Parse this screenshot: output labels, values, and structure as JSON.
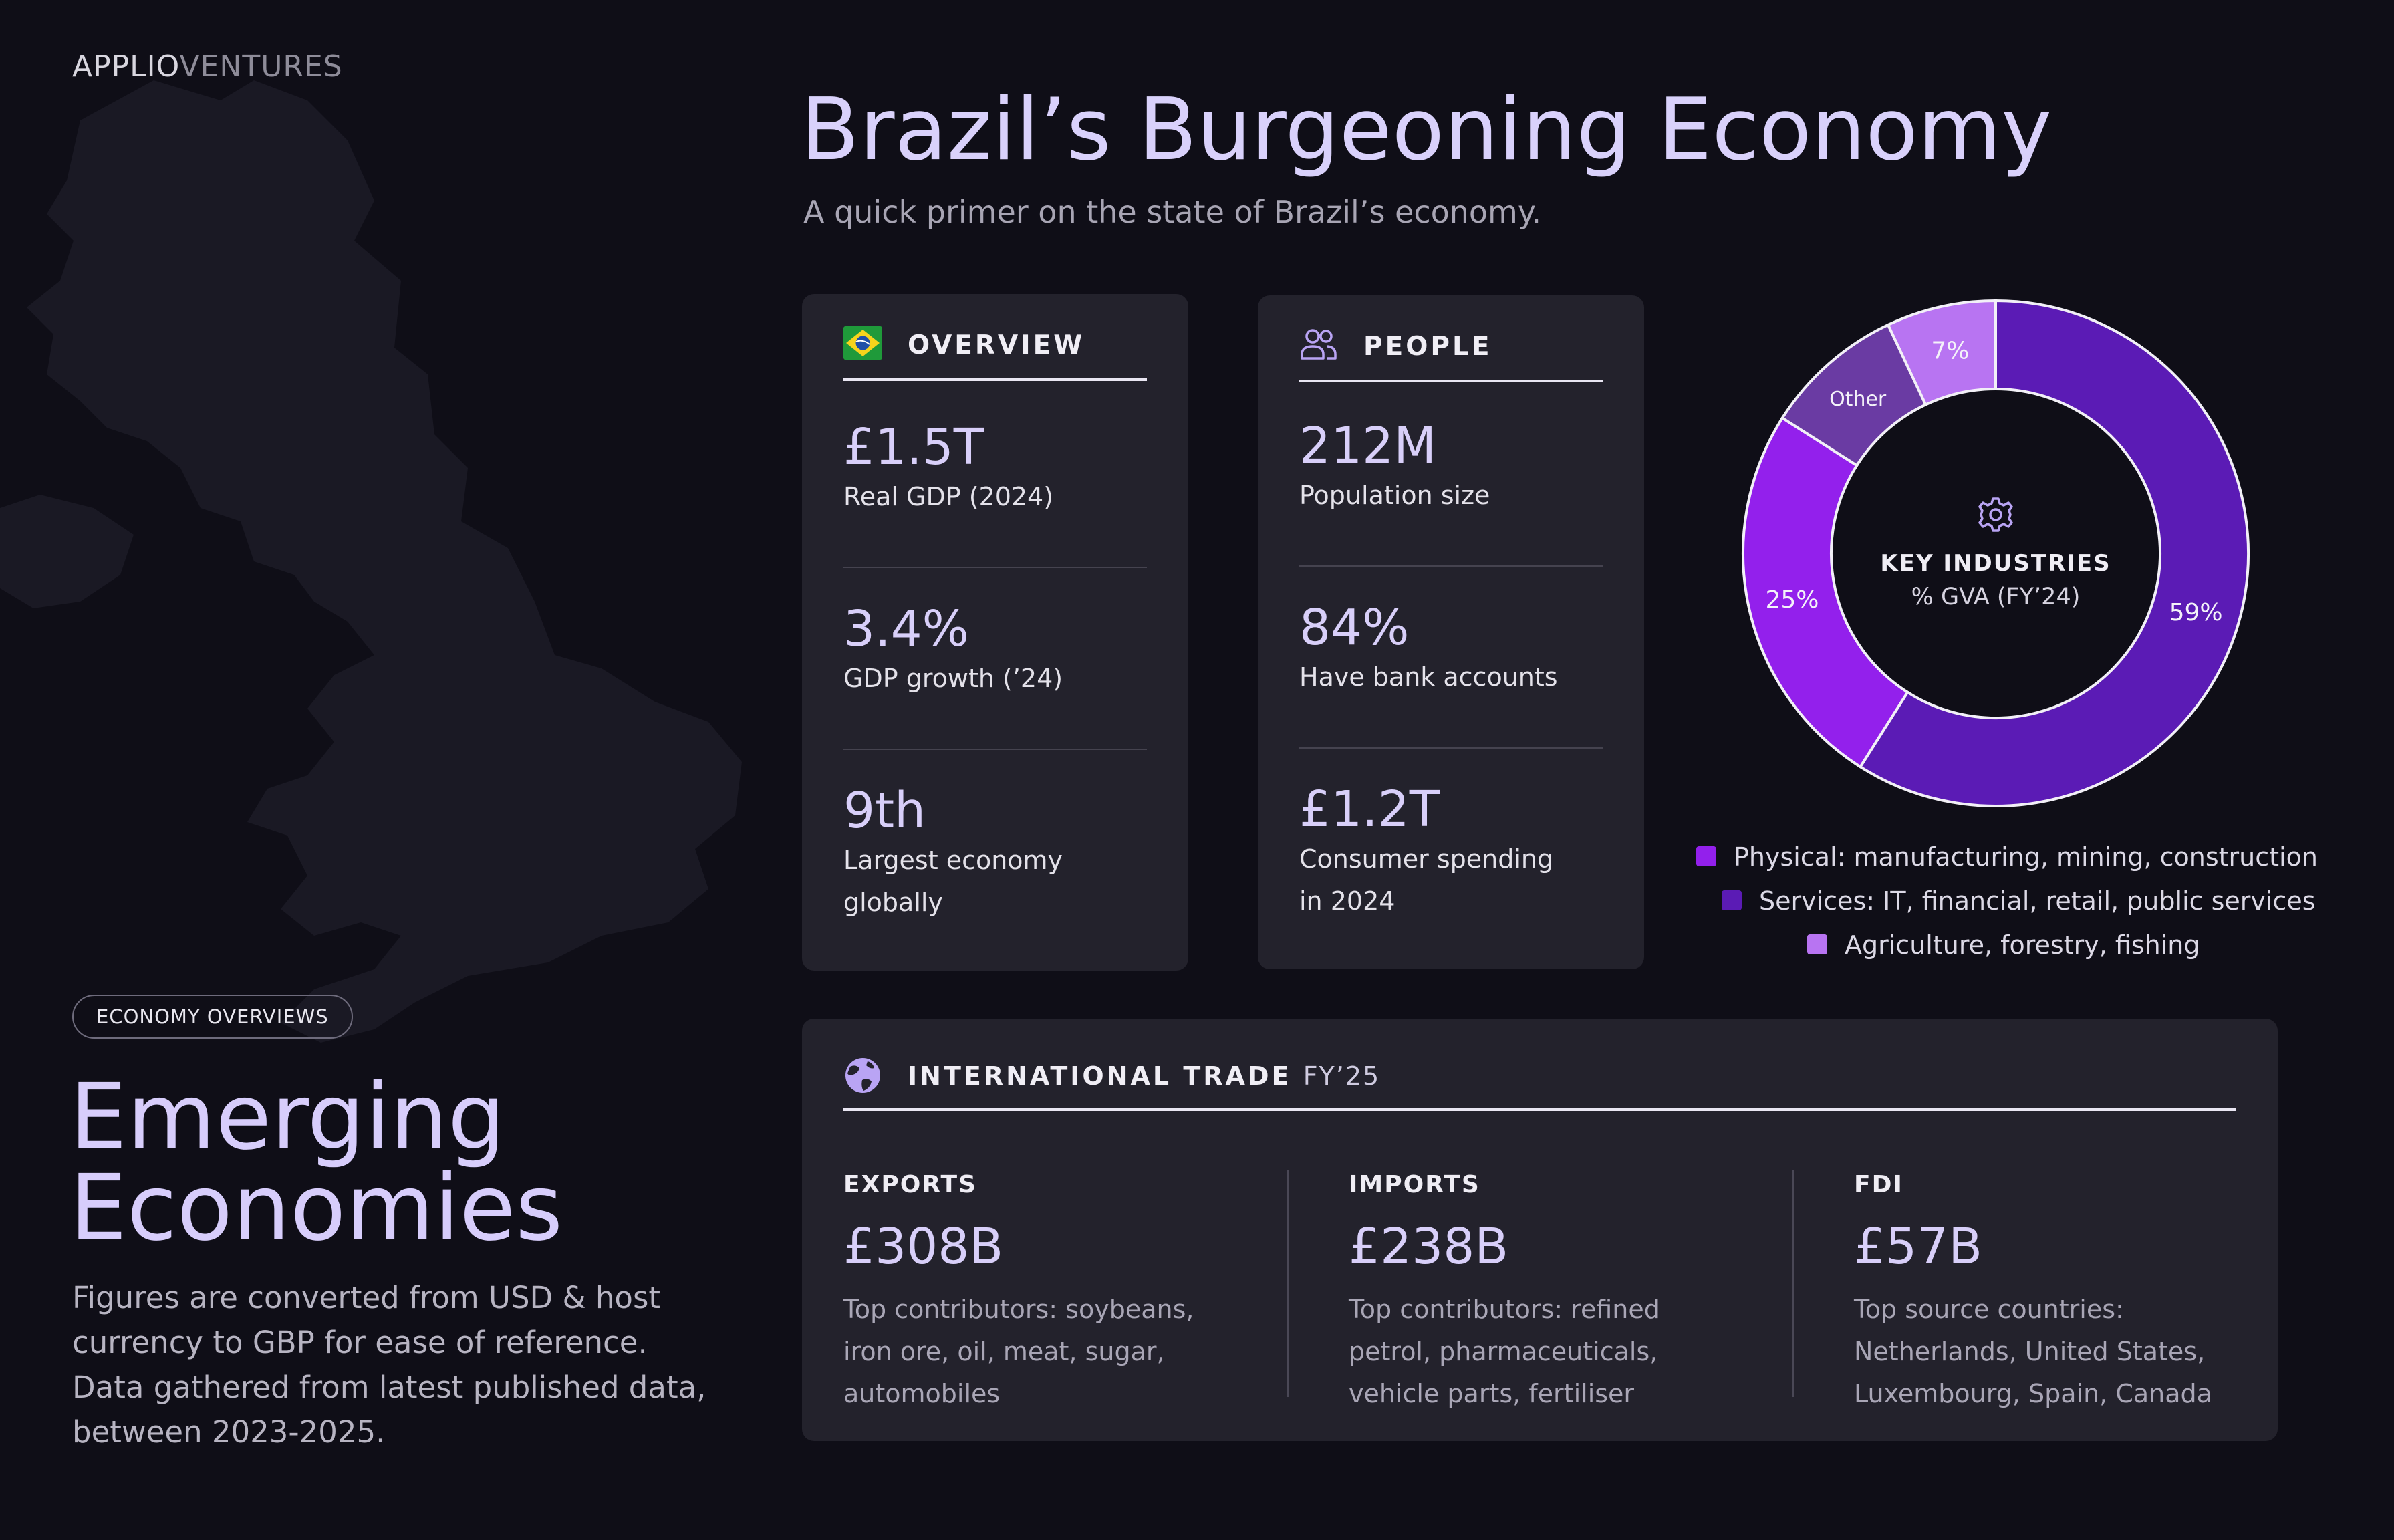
{
  "brand": {
    "part1": "APPLIO",
    "part2": "VENTURES"
  },
  "sidebar": {
    "pill": "ECONOMY OVERVIEWS",
    "title_line1": "Emerging",
    "title_line2": "Economies",
    "description": "Figures are converted from USD & host currency to GBP for ease of reference. Data gathered from latest published data, between 2023-2025."
  },
  "header": {
    "title": "Brazil’s Burgeoning Economy",
    "subtitle": "A quick primer on the state of Brazil’s economy."
  },
  "overview": {
    "heading": "OVERVIEW",
    "stats": [
      {
        "value": "£1.5T",
        "label": "Real GDP (2024)"
      },
      {
        "value": "3.4%",
        "label": "GDP growth (’24)"
      },
      {
        "value": "9th",
        "label_line1": "Largest economy",
        "label_line2": "globally"
      }
    ]
  },
  "people": {
    "heading": "PEOPLE",
    "stats": [
      {
        "value": "212M",
        "label": "Population size"
      },
      {
        "value": "84%",
        "label": "Have bank accounts"
      },
      {
        "value": "£1.2T",
        "label_line1": "Consumer spending",
        "label_line2": "in 2024"
      }
    ]
  },
  "trade": {
    "heading": "INTERNATIONAL TRADE",
    "heading_suffix": "FY’25",
    "columns": [
      {
        "label": "EXPORTS",
        "value": "£308B",
        "desc_line1": "Top contributors: soybeans,",
        "desc_line2": "iron ore, oil, meat, sugar,",
        "desc_line3": "automobiles"
      },
      {
        "label": "IMPORTS",
        "value": "£238B",
        "desc_line1": "Top contributors: refined",
        "desc_line2": "petrol, pharmaceuticals,",
        "desc_line3": "vehicle parts, fertiliser"
      },
      {
        "label": "FDI",
        "value": "£57B",
        "desc_line1": "Top source countries:",
        "desc_line2": "Netherlands, United States,",
        "desc_line3": "Luxembourg, Spain, Canada"
      }
    ]
  },
  "colors": {
    "background": "#0f0e17",
    "card": "#23222c",
    "accent_text": "#d8cff9",
    "services": "#5b1bb5",
    "physical": "#9320ec",
    "other": "#6a3ba3",
    "agriculture": "#b874f2"
  },
  "icons": {
    "overview": "brazil-flag-icon",
    "people": "people-icon",
    "chart_center": "gear-icon",
    "trade": "globe-icon"
  },
  "chart_data": {
    "type": "pie",
    "variant": "donut",
    "title": "KEY INDUSTRIES",
    "subtitle": "% GVA (FY’24)",
    "slices": [
      {
        "name": "Services: IT, financial, retail, public services",
        "value": 59,
        "label": "59%",
        "color": "#5b1bb5"
      },
      {
        "name": "Physical: manufacturing, mining, construction",
        "value": 25,
        "label": "25%",
        "color": "#9320ec"
      },
      {
        "name": "Other",
        "value": 9,
        "label": "Other",
        "color": "#6a3ba3"
      },
      {
        "name": "Agriculture, forestry, fishing",
        "value": 7,
        "label": "7%",
        "color": "#b874f2"
      }
    ],
    "legend": [
      {
        "label": "Physical: manufacturing, mining, construction",
        "color": "#9320ec"
      },
      {
        "label": "Services: IT, financial, retail, public services",
        "color": "#5b1bb5"
      },
      {
        "label": "Agriculture, forestry, fishing",
        "color": "#b874f2"
      }
    ],
    "legend_position": "bottom"
  }
}
